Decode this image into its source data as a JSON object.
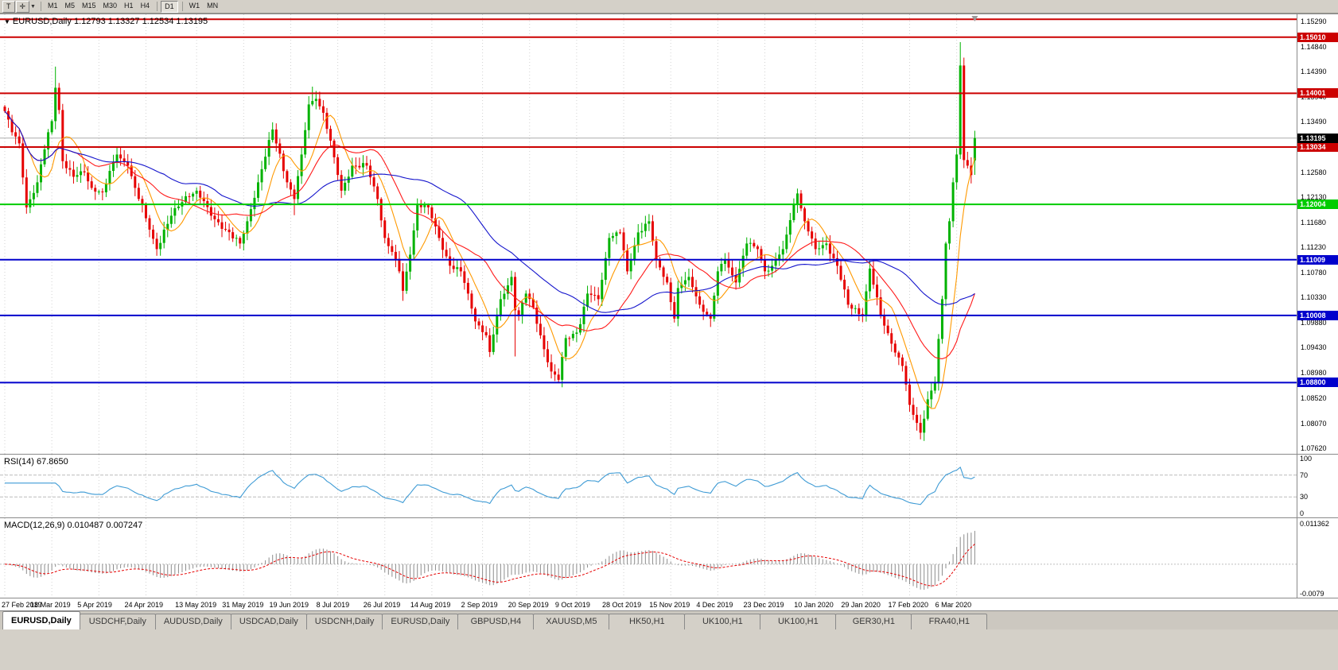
{
  "colors": {
    "bull": "#00B200",
    "bear": "#E60000",
    "ma_fast": "#FF9900",
    "ma_mid": "#FF1A1A",
    "ma_slow": "#1414CC",
    "rsi_line": "#3E9BD5",
    "grid": "#D2D2D2",
    "macd_hist": "#8C8C8C",
    "macd_signal": "#E60000",
    "current_price_bg": "#000000"
  },
  "toolbar": {
    "tools": [
      {
        "label": "T",
        "name": "cursor-tool-button"
      },
      {
        "label": "✛",
        "name": "crosshair-tool-button"
      }
    ],
    "dropdown_arrow": "▼",
    "timeframes": [
      "M1",
      "M5",
      "M15",
      "M30",
      "H1",
      "H4",
      "D1",
      "W1",
      "MN"
    ],
    "active_timeframe": "D1"
  },
  "chart": {
    "title_symbol": "EURUSD,Daily",
    "title_ohlc": "1.12793 1.13327 1.12534 1.13195",
    "current_price": "1.13195",
    "collapse_arrow": "▼"
  },
  "chart_data": {
    "type": "candlestick",
    "symbol": "EURUSD",
    "period": "Daily",
    "current_bar": {
      "open": 1.12793,
      "high": 1.13327,
      "low": 1.12534,
      "close": 1.13195
    },
    "y_range": [
      1.0752,
      1.1542
    ],
    "price_ticks": [
      "1.15290",
      "1.14840",
      "1.14390",
      "1.13940",
      "1.13490",
      "1.12580",
      "1.12130",
      "1.11680",
      "1.11230",
      "1.10780",
      "1.10330",
      "1.09880",
      "1.09430",
      "1.08980",
      "1.08520",
      "1.08070",
      "1.07620"
    ],
    "x_labels": [
      "27 Feb 2019",
      "18 Mar 2019",
      "5 Apr 2019",
      "24 Apr 2019",
      "13 May 2019",
      "31 May 2019",
      "19 Jun 2019",
      "8 Jul 2019",
      "26 Jul 2019",
      "14 Aug 2019",
      "2 Sep 2019",
      "20 Sep 2019",
      "9 Oct 2019",
      "28 Oct 2019",
      "15 Nov 2019",
      "4 Dec 2019",
      "23 Dec 2019",
      "10 Jan 2020",
      "29 Jan 2020",
      "17 Feb 2020",
      "6 Mar 2020"
    ],
    "label_span": 263,
    "bars_count": 269,
    "close_anchors": [
      [
        0,
        1.1368
      ],
      [
        2,
        1.133
      ],
      [
        4,
        1.131
      ],
      [
        6,
        1.1195
      ],
      [
        9,
        1.124
      ],
      [
        12,
        1.133
      ],
      [
        13,
        1.135
      ],
      [
        14,
        1.141
      ],
      [
        15,
        1.137
      ],
      [
        16,
        1.1278
      ],
      [
        19,
        1.125
      ],
      [
        22,
        1.1258
      ],
      [
        24,
        1.123
      ],
      [
        27,
        1.1222
      ],
      [
        31,
        1.129
      ],
      [
        34,
        1.127
      ],
      [
        36,
        1.123
      ],
      [
        40,
        1.1155
      ],
      [
        42,
        1.112
      ],
      [
        46,
        1.118
      ],
      [
        50,
        1.1215
      ],
      [
        53,
        1.1225
      ],
      [
        57,
        1.118
      ],
      [
        61,
        1.1155
      ],
      [
        65,
        1.113
      ],
      [
        67,
        1.117
      ],
      [
        70,
        1.124
      ],
      [
        74,
        1.1335
      ],
      [
        78,
        1.124
      ],
      [
        80,
        1.121
      ],
      [
        82,
        1.129
      ],
      [
        84,
        1.138
      ],
      [
        86,
        1.139
      ],
      [
        88,
        1.1365
      ],
      [
        91,
        1.1285
      ],
      [
        93,
        1.1225
      ],
      [
        96,
        1.127
      ],
      [
        100,
        1.127
      ],
      [
        103,
        1.121
      ],
      [
        105,
        1.114
      ],
      [
        107,
        1.1115
      ],
      [
        109,
        1.108
      ],
      [
        110,
        1.1045
      ],
      [
        112,
        1.111
      ],
      [
        114,
        1.12
      ],
      [
        117,
        1.1195
      ],
      [
        120,
        1.114
      ],
      [
        123,
        1.109
      ],
      [
        126,
        1.108
      ],
      [
        128,
        1.104
      ],
      [
        130,
        1.099
      ],
      [
        133,
        1.0965
      ],
      [
        134,
        1.0935
      ],
      [
        137,
        1.103
      ],
      [
        140,
        1.107
      ],
      [
        141,
        1.101
      ],
      [
        142,
        1.1
      ],
      [
        144,
        1.104
      ],
      [
        146,
        1.1015
      ],
      [
        149,
        1.094
      ],
      [
        151,
        1.09
      ],
      [
        153,
        1.0885
      ],
      [
        155,
        1.096
      ],
      [
        158,
        1.097
      ],
      [
        159,
        1.0985
      ],
      [
        161,
        1.104
      ],
      [
        164,
        1.103
      ],
      [
        167,
        1.114
      ],
      [
        170,
        1.115
      ],
      [
        172,
        1.108
      ],
      [
        175,
        1.115
      ],
      [
        178,
        1.117
      ],
      [
        180,
        1.11
      ],
      [
        183,
        1.106
      ],
      [
        185,
        1.0995
      ],
      [
        186,
        1.105
      ],
      [
        189,
        1.107
      ],
      [
        192,
        1.102
      ],
      [
        195,
        1.0995
      ],
      [
        197,
        1.108
      ],
      [
        199,
        1.11
      ],
      [
        202,
        1.106
      ],
      [
        205,
        1.113
      ],
      [
        208,
        1.112
      ],
      [
        210,
        1.108
      ],
      [
        212,
        1.109
      ],
      [
        215,
        1.112
      ],
      [
        218,
        1.12
      ],
      [
        219,
        1.122
      ],
      [
        221,
        1.117
      ],
      [
        224,
        1.112
      ],
      [
        227,
        1.113
      ],
      [
        230,
        1.109
      ],
      [
        233,
        1.102
      ],
      [
        237,
        1.1
      ],
      [
        239,
        1.1085
      ],
      [
        242,
        1.1
      ],
      [
        245,
        1.095
      ],
      [
        248,
        1.091
      ],
      [
        250,
        1.084
      ],
      [
        253,
        1.079
      ],
      [
        255,
        1.085
      ],
      [
        257,
        1.088
      ],
      [
        259,
        1.103
      ],
      [
        260,
        1.113
      ],
      [
        261,
        1.117
      ],
      [
        262,
        1.124
      ],
      [
        263,
        1.129
      ],
      [
        264,
        1.145
      ],
      [
        265,
        1.128
      ],
      [
        266,
        1.127
      ],
      [
        267,
        1.1253
      ],
      [
        268,
        1.13195
      ]
    ],
    "bar_overrides": {
      "14": {
        "h": 1.1448
      },
      "80": {
        "l": 1.1181
      },
      "85": {
        "h": 1.1412
      },
      "110": {
        "l": 1.1027
      },
      "134": {
        "l": 1.0926
      },
      "141": {
        "l": 1.0927
      },
      "153": {
        "l": 1.0879
      },
      "253": {
        "l": 1.0778
      },
      "264": {
        "h": 1.1492
      },
      "268": {
        "o": 1.12793,
        "h": 1.13327,
        "l": 1.12534,
        "c": 1.13195
      }
    },
    "horizontal_lines": [
      {
        "price": 1.1533,
        "color": "#CC0000",
        "label": ""
      },
      {
        "price": 1.1501,
        "color": "#CC0000",
        "label": "1.15010"
      },
      {
        "price": 1.14001,
        "color": "#CC0000",
        "label": "1.14001"
      },
      {
        "price": 1.13034,
        "color": "#CC0000",
        "label": "1.13034"
      },
      {
        "price": 1.12004,
        "color": "#00CC00",
        "label": "1.12004"
      },
      {
        "price": 1.11009,
        "color": "#0000CC",
        "label": "1.11009"
      },
      {
        "price": 1.10008,
        "color": "#0000CC",
        "label": "1.10008"
      },
      {
        "price": 1.088,
        "color": "#0000CC",
        "label": "1.08800"
      }
    ],
    "moving_averages": [
      {
        "period": 8,
        "color_key": "ma_fast"
      },
      {
        "period": 21,
        "color_key": "ma_mid"
      },
      {
        "period": 45,
        "color_key": "ma_slow"
      }
    ],
    "rsi_panel": {
      "header": "RSI(14) 67.8650",
      "period": 14,
      "value": 67.865,
      "levels": [
        70,
        30
      ],
      "axis_labels": [
        "100",
        "70",
        "30",
        "0"
      ],
      "range": [
        0,
        100
      ]
    },
    "macd_panel": {
      "header": "MACD(12,26,9) 0.010487 0.007247",
      "fast": 12,
      "slow": 26,
      "signal": 9,
      "macd_value": 0.010487,
      "signal_value": 0.007247,
      "scale_top": 0.011362,
      "scale_bottom": -0.0079,
      "axis_top_label": "0.011362",
      "axis_bottom_label": "-0.0079"
    }
  },
  "tabs": {
    "items": [
      "EURUSD,Daily",
      "USDCHF,Daily",
      "AUDUSD,Daily",
      "USDCAD,Daily",
      "USDCNH,Daily",
      "EURUSD,Daily",
      "GBPUSD,H4",
      "XAUUSD,M5",
      "HK50,H1",
      "UK100,H1",
      "UK100,H1",
      "GER30,H1",
      "FRA40,H1"
    ],
    "active_index": 0
  }
}
